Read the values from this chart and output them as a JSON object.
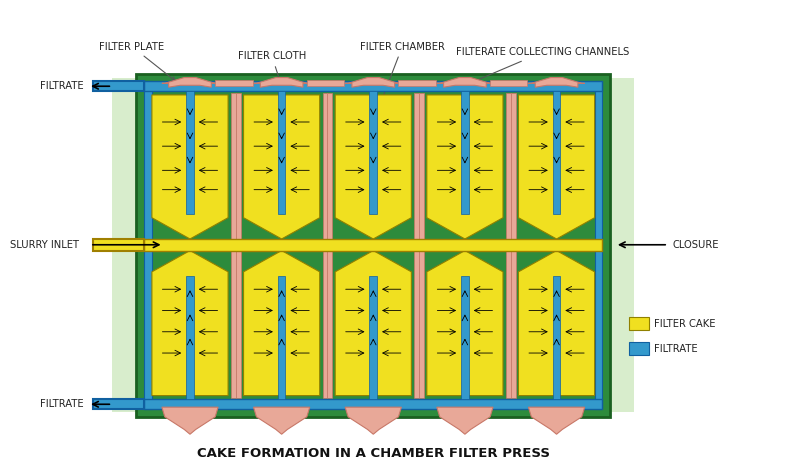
{
  "title": "CAKE FORMATION IN A CHAMBER FILTER PRESS",
  "bg_color": "#ffffff",
  "light_green": "#d8edcc",
  "dark_green": "#2d8b3c",
  "yellow": "#f0e020",
  "blue": "#3399cc",
  "pink": "#e8a898",
  "pink_dark": "#c87868",
  "labels": {
    "filter_plate": "FILTER PLATE",
    "filter_cloth": "FILTER CLOTH",
    "filter_chamber": "FILTER CHAMBER",
    "filterate_channels": "FILTERATE COLLECTING CHANNELS",
    "slurry_inlet": "SLURRY INLET",
    "filtrate_top": "FILTRATE",
    "filtrate_bottom": "FILTRATE",
    "closure": "CLOSURE",
    "filter_cake_legend": "FILTER CAKE",
    "filtrate_legend": "FILTRATE"
  },
  "label_fontsize": 7.2,
  "title_fontsize": 9.5
}
